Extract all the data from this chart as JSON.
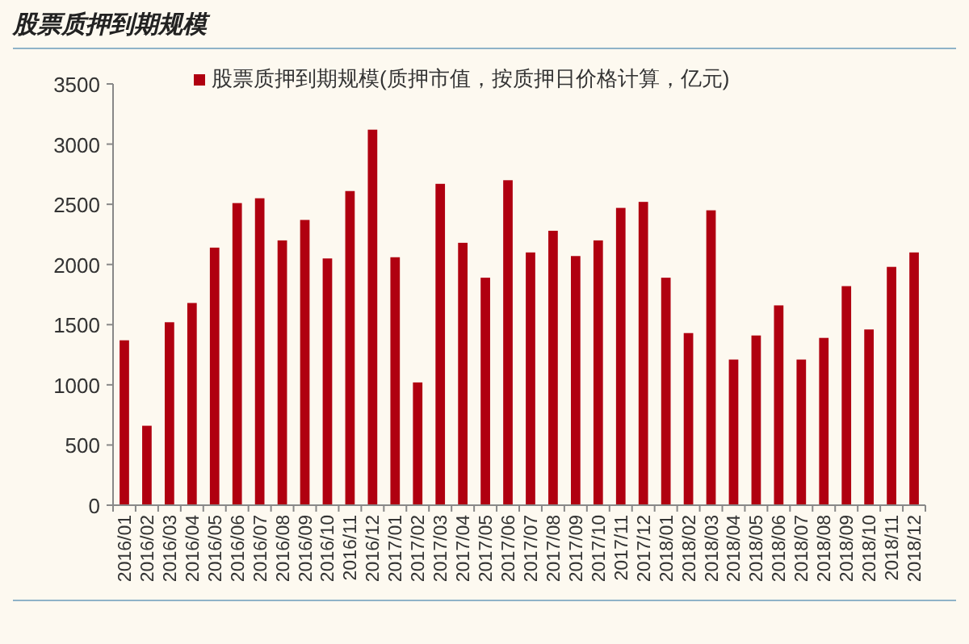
{
  "chart_data": {
    "type": "bar",
    "title": "股票质押到期规模",
    "categories": [
      "2016/01",
      "2016/02",
      "2016/03",
      "2016/04",
      "2016/05",
      "2016/06",
      "2016/07",
      "2016/08",
      "2016/09",
      "2016/10",
      "2016/11",
      "2016/12",
      "2017/01",
      "2017/02",
      "2017/03",
      "2017/04",
      "2017/05",
      "2017/06",
      "2017/07",
      "2017/08",
      "2017/09",
      "2017/10",
      "2017/11",
      "2017/12",
      "2018/01",
      "2018/02",
      "2018/03",
      "2018/04",
      "2018/05",
      "2018/06",
      "2018/07",
      "2018/08",
      "2018/09",
      "2018/10",
      "2018/11",
      "2018/12"
    ],
    "series": [
      {
        "name": "股票质押到期规模(质押市值，按质押日价格计算，亿元)",
        "color": "#b00010",
        "values": [
          1370,
          660,
          1520,
          1680,
          2140,
          2510,
          2550,
          2200,
          2370,
          2050,
          2610,
          3120,
          2060,
          1020,
          2670,
          2180,
          1890,
          2700,
          2100,
          2280,
          2070,
          2200,
          2470,
          2520,
          1890,
          1430,
          2450,
          1210,
          1410,
          1660,
          1210,
          1390,
          1820,
          1460,
          1980,
          2100
        ]
      }
    ],
    "ylim": [
      0,
      3500
    ],
    "yticks": [
      0,
      500,
      1000,
      1500,
      2000,
      2500,
      3000,
      3500
    ],
    "grid": false,
    "legend": "top"
  }
}
